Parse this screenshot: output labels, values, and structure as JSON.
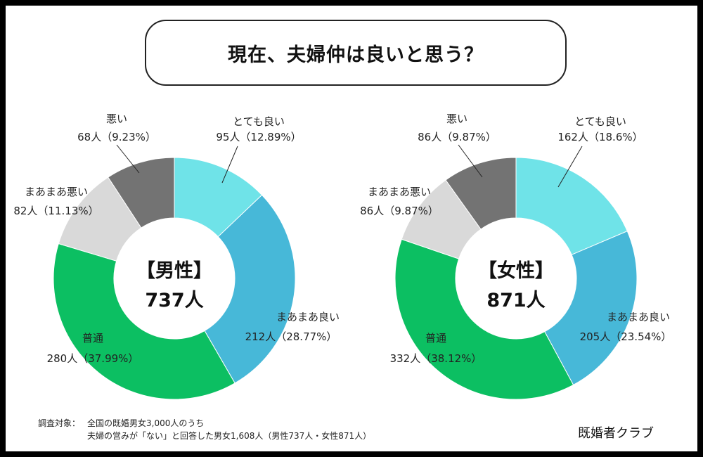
{
  "title": "現在、夫婦仲は良いと思う？",
  "colors": {
    "とても良い": "#6fe3e8",
    "まあまあ良い": "#47b8d8",
    "普通": "#0cbf62",
    "まあまあ悪い": "#d9d9d9",
    "悪い": "#737373"
  },
  "chart_data": [
    {
      "type": "pie",
      "center_title": "【男性】",
      "center_count": "737人",
      "categories": [
        "とても良い",
        "まあまあ良い",
        "普通",
        "まあまあ悪い",
        "悪い"
      ],
      "counts": [
        95,
        212,
        280,
        82,
        68
      ],
      "percents": [
        12.89,
        28.77,
        37.99,
        11.13,
        9.23
      ],
      "labels": [
        {
          "name": "とても良い",
          "value": "95人（12.89%）"
        },
        {
          "name": "まあまあ良い",
          "value": "212人（28.77%）"
        },
        {
          "name": "普通",
          "value": "280人（37.99%）"
        },
        {
          "name": "まあまあ悪い",
          "value": "82人（11.13%）"
        },
        {
          "name": "悪い",
          "value": "68人（9.23%）"
        }
      ]
    },
    {
      "type": "pie",
      "center_title": "【女性】",
      "center_count": "871人",
      "categories": [
        "とても良い",
        "まあまあ良い",
        "普通",
        "まあまあ悪い",
        "悪い"
      ],
      "counts": [
        162,
        205,
        332,
        86,
        86
      ],
      "percents": [
        18.6,
        23.54,
        38.12,
        9.87,
        9.87
      ],
      "labels": [
        {
          "name": "とても良い",
          "value": "162人（18.6%）"
        },
        {
          "name": "まあまあ良い",
          "value": "205人（23.54%）"
        },
        {
          "name": "普通",
          "value": "332人（38.12%）"
        },
        {
          "name": "まあまあ悪い",
          "value": "86人（9.87%）"
        },
        {
          "name": "悪い",
          "value": "86人（9.87%）"
        }
      ]
    }
  ],
  "footnote": {
    "prefix": "調査対象：",
    "line1": "全国の既婚男女3,000人のうち",
    "line2": "夫婦の営みが「ない」と回答した男女1,608人（男性737人・女性871人）"
  },
  "source": "既婚者クラブ"
}
